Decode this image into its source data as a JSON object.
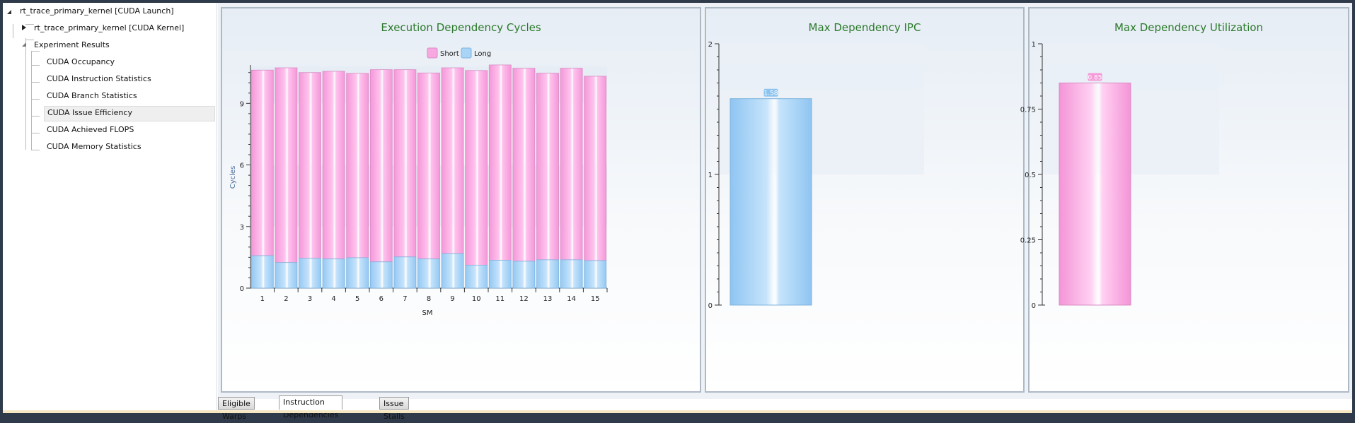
{
  "tree": {
    "root": "rt_trace_primary_kernel [CUDA Launch]",
    "kernel": "rt_trace_primary_kernel [CUDA Kernel]",
    "results": "Experiment Results",
    "items": [
      "CUDA Occupancy",
      "CUDA Instruction Statistics",
      "CUDA Branch Statistics",
      "CUDA Issue Efficiency",
      "CUDA Achieved FLOPS",
      "CUDA Memory Statistics"
    ],
    "selected_index": 3
  },
  "tabs": [
    "Eligible Warps",
    "Instruction Dependencies",
    "Issue Stalls"
  ],
  "active_tab": 1,
  "colors": {
    "short": "#f7a8e0",
    "long": "#a8d4f7",
    "title": "#2b7a2b"
  },
  "chart_data": [
    {
      "type": "bar",
      "stacked": true,
      "title": "Execution Dependency Cycles",
      "xlabel": "SM",
      "ylabel": "Cycles",
      "ylim": [
        0,
        10.8
      ],
      "yticks": [
        0,
        3,
        6,
        9
      ],
      "legend_position": "top",
      "categories": [
        "1",
        "2",
        "3",
        "4",
        "5",
        "6",
        "7",
        "8",
        "9",
        "10",
        "11",
        "12",
        "13",
        "14",
        "15"
      ],
      "series": [
        {
          "name": "Long",
          "values": [
            1.58,
            1.25,
            1.45,
            1.42,
            1.48,
            1.28,
            1.52,
            1.42,
            1.68,
            1.12,
            1.36,
            1.31,
            1.38,
            1.38,
            1.34
          ]
        },
        {
          "name": "Short",
          "values": [
            9.04,
            9.48,
            9.05,
            9.14,
            8.98,
            9.36,
            9.12,
            9.06,
            9.05,
            9.48,
            9.51,
            9.4,
            9.09,
            9.33,
            8.98
          ]
        }
      ]
    },
    {
      "type": "bar",
      "title": "Max Dependency IPC",
      "ylim": [
        0,
        2
      ],
      "yticks": [
        0,
        1,
        2
      ],
      "values": [
        1.58
      ],
      "data_labels": [
        "1.58"
      ]
    },
    {
      "type": "bar",
      "title": "Max Dependency Utilization",
      "ylim": [
        0,
        1
      ],
      "yticks": [
        0,
        0.25,
        0.5,
        0.75,
        1
      ],
      "values": [
        0.85
      ],
      "data_labels": [
        "0.85"
      ]
    }
  ]
}
